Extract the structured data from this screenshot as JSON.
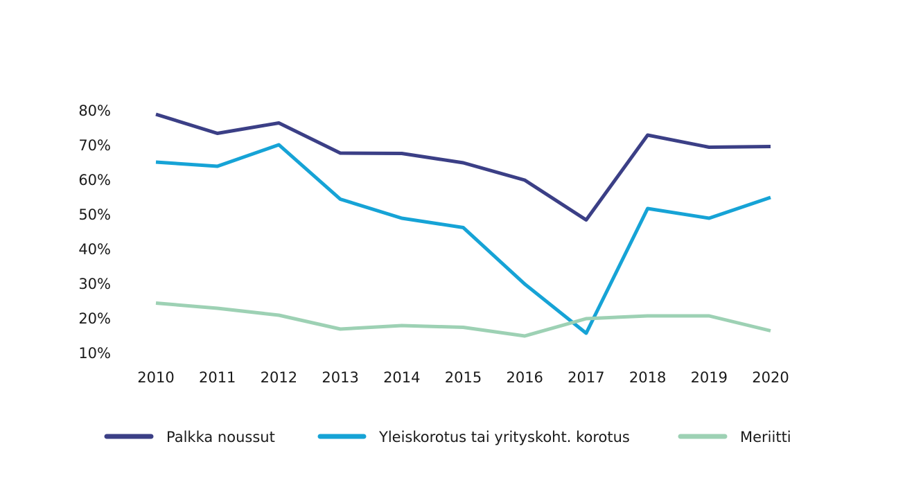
{
  "chart_data": {
    "type": "line",
    "title": "",
    "xlabel": "",
    "ylabel": "",
    "categories": [
      "2010",
      "2011",
      "2012",
      "2013",
      "2014",
      "2015",
      "2016",
      "2017",
      "2018",
      "2019",
      "2020"
    ],
    "ylim": [
      10,
      80
    ],
    "yticks": [
      80,
      70,
      60,
      50,
      40,
      30,
      20,
      10
    ],
    "ytick_labels": [
      "80%",
      "70%",
      "60%",
      "50%",
      "40%",
      "30%",
      "20%",
      "10%"
    ],
    "grid": false,
    "legend_position": "bottom",
    "series": [
      {
        "name": "Palkka noussut",
        "color": "#3b3f86",
        "values": [
          79,
          73.5,
          76.5,
          67.8,
          67.7,
          65,
          60,
          48.5,
          73,
          69.5,
          69.7
        ]
      },
      {
        "name": "Yleiskorotus tai yrityskoht. korotus",
        "color": "#16a3d6",
        "values": [
          65.2,
          64,
          70.2,
          54.5,
          49,
          46.3,
          30,
          15.8,
          51.8,
          49,
          55
        ]
      },
      {
        "name": "Meriitti",
        "color": "#9dd1b4",
        "values": [
          24.5,
          23,
          21,
          17,
          18,
          17.5,
          15,
          20,
          20.8,
          20.8,
          16.5
        ]
      }
    ]
  }
}
